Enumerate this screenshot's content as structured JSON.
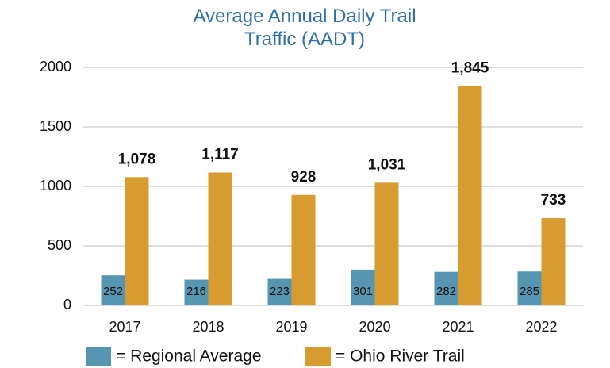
{
  "chart_data": {
    "type": "bar",
    "title": "Average Annual Daily Trail Traffic (AADT)",
    "categories": [
      "2017",
      "2018",
      "2019",
      "2020",
      "2021",
      "2022"
    ],
    "series": [
      {
        "name": "= Regional Average",
        "color": "#5796b2",
        "values": [
          252,
          216,
          223,
          301,
          282,
          285
        ]
      },
      {
        "name": "= Ohio River Trail",
        "color": "#d89b2f",
        "values": [
          1078,
          1117,
          928,
          1031,
          1845,
          733
        ],
        "value_labels": [
          "1,078",
          "1,117",
          "928",
          "1,031",
          "1,845",
          "733"
        ]
      }
    ],
    "ylim": [
      0,
      2000
    ],
    "yticks": [
      0,
      500,
      1000,
      1500,
      2000
    ],
    "grid": true
  }
}
